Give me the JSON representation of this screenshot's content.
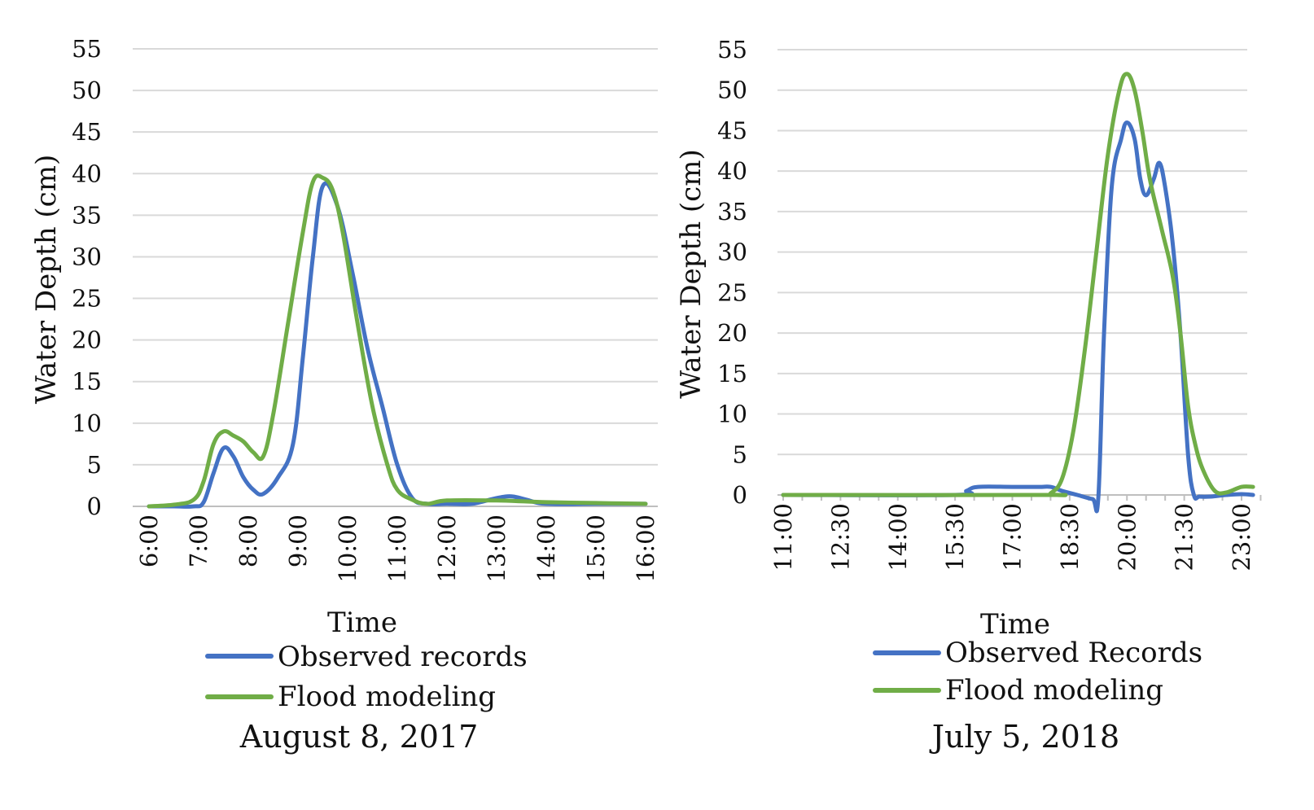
{
  "chart_data": [
    {
      "type": "line",
      "title": "August 8, 2017",
      "xlabel": "Time",
      "ylabel": "Water Depth (cm)",
      "ylim": [
        0,
        55
      ],
      "yticks": [
        0,
        5,
        10,
        15,
        20,
        25,
        30,
        35,
        40,
        45,
        50,
        55
      ],
      "xlim": [
        6.0,
        16.0
      ],
      "xticks": [
        "6:00",
        "7:00",
        "8:00",
        "9:00",
        "10:00",
        "11:00",
        "12:00",
        "13:00",
        "14:00",
        "15:00",
        "16:00"
      ],
      "grid": true,
      "series": [
        {
          "name": "Observed records",
          "color": "#4472c4",
          "x": [
            6.0,
            6.5,
            6.9,
            7.1,
            7.3,
            7.5,
            7.7,
            7.9,
            8.1,
            8.3,
            8.6,
            8.9,
            9.1,
            9.3,
            9.5,
            9.8,
            10.1,
            10.4,
            10.7,
            11.0,
            11.3,
            11.6,
            12.0,
            12.5,
            13.0,
            13.3,
            13.6,
            14.0,
            15.0,
            16.0
          ],
          "y": [
            0,
            0,
            0,
            0.5,
            4,
            7,
            6,
            3.5,
            2,
            1.5,
            3.5,
            7.5,
            18,
            30,
            38.5,
            36,
            28,
            19,
            12,
            5,
            1,
            0.3,
            0.3,
            0.3,
            1,
            1.2,
            0.8,
            0.3,
            0.3,
            0.3
          ]
        },
        {
          "name": "Flood modeling",
          "color": "#70ad47",
          "x": [
            6.0,
            6.5,
            6.9,
            7.1,
            7.3,
            7.5,
            7.7,
            7.9,
            8.1,
            8.3,
            8.5,
            8.8,
            9.1,
            9.3,
            9.5,
            9.7,
            9.9,
            10.2,
            10.5,
            10.8,
            11.0,
            11.3,
            11.6,
            12.0,
            13.0,
            14.0,
            15.0,
            16.0
          ],
          "y": [
            0,
            0.2,
            0.8,
            3,
            7.5,
            9,
            8.5,
            7.8,
            6.5,
            6,
            11,
            22,
            33,
            39,
            39.5,
            38,
            33,
            22,
            12,
            5,
            2,
            0.8,
            0.3,
            0.7,
            0.7,
            0.5,
            0.4,
            0.3
          ]
        }
      ]
    },
    {
      "type": "line",
      "title": "July 5, 2018",
      "xlabel": "Time",
      "ylabel": "Water Depth (cm)",
      "ylim": [
        0,
        55
      ],
      "yticks": [
        0,
        5,
        10,
        15,
        20,
        25,
        30,
        35,
        40,
        45,
        50,
        55
      ],
      "xlim": [
        11.0,
        23.5
      ],
      "xticks": [
        "11:00",
        "12:30",
        "14:00",
        "15:30",
        "17:00",
        "18:30",
        "20:00",
        "21:30",
        "23:00"
      ],
      "grid": true,
      "series": [
        {
          "name": "Observed Records",
          "color": "#4472c4",
          "x": [
            11.0,
            15.5,
            15.8,
            16.1,
            17.0,
            17.7,
            18.0,
            18.3,
            18.7,
            19.1,
            19.25,
            19.4,
            19.6,
            19.85,
            20.0,
            20.2,
            20.35,
            20.5,
            20.7,
            20.85,
            21.0,
            21.2,
            21.4,
            21.6,
            21.75,
            21.9,
            22.2,
            22.6,
            23.0,
            23.3
          ],
          "y": [
            0,
            0,
            0.5,
            1,
            1,
            1,
            1,
            0.5,
            0,
            -0.5,
            -0.3,
            20,
            38,
            44,
            46,
            44,
            39,
            37,
            39,
            41,
            38,
            31,
            20,
            5,
            0,
            -0.2,
            -0.2,
            0,
            0.1,
            0
          ]
        },
        {
          "name": "Flood modeling",
          "color": "#70ad47",
          "x": [
            11.0,
            17.8,
            18.0,
            18.3,
            18.6,
            18.9,
            19.2,
            19.5,
            19.8,
            20.0,
            20.2,
            20.4,
            20.6,
            20.9,
            21.2,
            21.4,
            21.6,
            21.8,
            22.0,
            22.3,
            22.6,
            23.0,
            23.3
          ],
          "y": [
            0,
            0,
            0.2,
            2,
            8,
            18,
            30,
            42,
            50,
            52,
            50,
            45,
            39,
            33,
            27,
            20,
            11,
            6,
            3,
            0.5,
            0.3,
            1,
            1
          ]
        }
      ]
    }
  ]
}
